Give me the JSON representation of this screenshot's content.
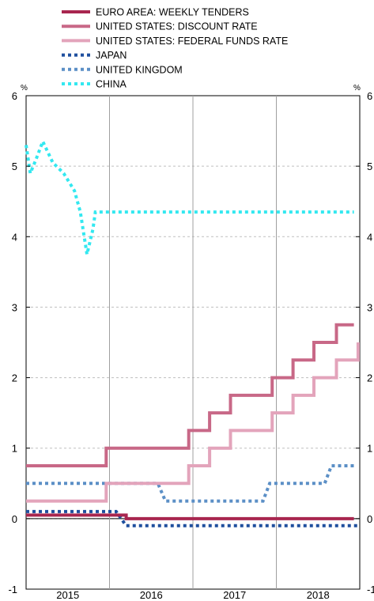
{
  "chart_data": {
    "type": "line",
    "y_unit_left": "%",
    "y_unit_right": "%",
    "ylim": [
      -1,
      6
    ],
    "yticks": [
      -1,
      0,
      1,
      2,
      3,
      4,
      5,
      6
    ],
    "y_tick_labels": [
      "-1",
      "0",
      "1",
      "2",
      "3",
      "4",
      "5",
      "6"
    ],
    "xlim": [
      2015.0,
      2019.0
    ],
    "x_tick_labels": [
      {
        "label": "2015",
        "x": 2015.5
      },
      {
        "label": "2016",
        "x": 2016.5
      },
      {
        "label": "2017",
        "x": 2017.5
      },
      {
        "label": "2018",
        "x": 2018.5
      }
    ],
    "year_dividers": [
      2016,
      2017,
      2018
    ],
    "grid": "horizontal dashed",
    "legend_position": "top",
    "series": [
      {
        "name": "EURO AREA: WEEKLY TENDERS",
        "color": "#a8264f",
        "style": "solid",
        "step": true,
        "points": [
          [
            2015.0,
            0.05
          ],
          [
            2015.71,
            0.05
          ],
          [
            2016.2,
            0.0
          ],
          [
            2018.93,
            0.0
          ]
        ]
      },
      {
        "name": "UNITED STATES: DISCOUNT RATE",
        "color": "#c86887",
        "style": "solid",
        "step": true,
        "points": [
          [
            2015.0,
            0.75
          ],
          [
            2015.96,
            1.0
          ],
          [
            2016.95,
            1.25
          ],
          [
            2017.2,
            1.5
          ],
          [
            2017.45,
            1.75
          ],
          [
            2017.95,
            2.0
          ],
          [
            2018.2,
            2.25
          ],
          [
            2018.45,
            2.5
          ],
          [
            2018.72,
            2.75
          ],
          [
            2018.93,
            2.75
          ]
        ]
      },
      {
        "name": "UNITED STATES: FEDERAL FUNDS RATE",
        "color": "#e3a4bb",
        "style": "solid",
        "step": true,
        "points": [
          [
            2015.0,
            0.25
          ],
          [
            2015.96,
            0.5
          ],
          [
            2016.95,
            0.75
          ],
          [
            2017.2,
            1.0
          ],
          [
            2017.45,
            1.25
          ],
          [
            2017.95,
            1.5
          ],
          [
            2018.2,
            1.75
          ],
          [
            2018.45,
            2.0
          ],
          [
            2018.72,
            2.25
          ],
          [
            2018.98,
            2.5
          ]
        ]
      },
      {
        "name": "JAPAN",
        "color": "#1f4f9e",
        "style": "dotted",
        "step": false,
        "points": [
          [
            2015.0,
            0.1
          ],
          [
            2016.08,
            0.1
          ],
          [
            2016.2,
            -0.1
          ],
          [
            2018.98,
            -0.1
          ]
        ]
      },
      {
        "name": "UNITED KINGDOM",
        "color": "#5b8fc6",
        "style": "dotted",
        "step": false,
        "points": [
          [
            2015.0,
            0.5
          ],
          [
            2016.58,
            0.5
          ],
          [
            2016.67,
            0.25
          ],
          [
            2017.84,
            0.25
          ],
          [
            2017.92,
            0.5
          ],
          [
            2018.58,
            0.5
          ],
          [
            2018.66,
            0.75
          ],
          [
            2018.93,
            0.75
          ]
        ]
      },
      {
        "name": "CHINA",
        "color": "#33e8f0",
        "style": "dotted",
        "step": false,
        "points": [
          [
            2015.0,
            5.3
          ],
          [
            2015.05,
            4.9
          ],
          [
            2015.12,
            5.1
          ],
          [
            2015.2,
            5.35
          ],
          [
            2015.32,
            5.05
          ],
          [
            2015.45,
            4.9
          ],
          [
            2015.58,
            4.65
          ],
          [
            2015.65,
            4.35
          ],
          [
            2015.73,
            3.75
          ],
          [
            2015.8,
            4.1
          ],
          [
            2015.83,
            4.35
          ],
          [
            2018.93,
            4.35
          ]
        ]
      }
    ]
  }
}
